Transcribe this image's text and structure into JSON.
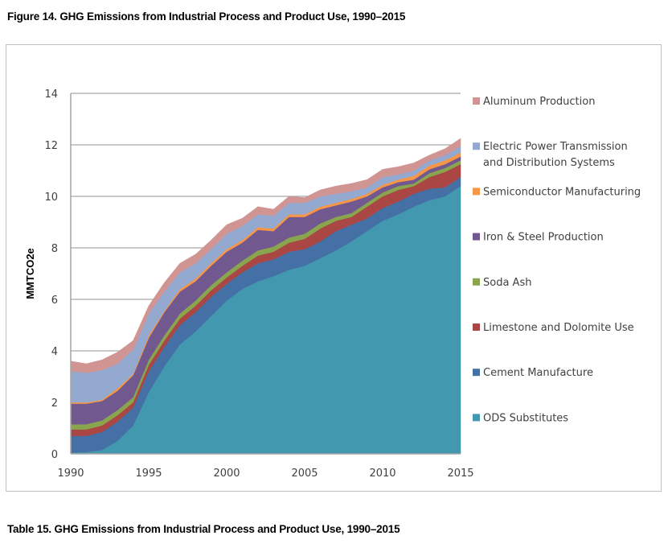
{
  "figure_title": "Figure 14. GHG Emissions from Industrial Process and Product Use, 1990–2015",
  "table_title": "Table 15. GHG Emissions from Industrial Process and Product Use, 1990–2015",
  "chart_data": {
    "type": "area",
    "stacked": true,
    "title": "Figure 14. GHG Emissions from Industrial Process and Product Use, 1990–2015",
    "xlabel": "",
    "ylabel": "MMTCO2e",
    "xlim": [
      1990,
      2015
    ],
    "ylim": [
      0,
      14
    ],
    "x_ticks": [
      "1990",
      "1995",
      "2000",
      "2005",
      "2010",
      "2015"
    ],
    "y_ticks": [
      "0",
      "2",
      "4",
      "6",
      "8",
      "10",
      "12",
      "14"
    ],
    "y_tick_values": [
      0,
      2,
      4,
      6,
      8,
      10,
      12,
      14
    ],
    "x_tick_values": [
      1990,
      1995,
      2000,
      2005,
      2010,
      2015
    ],
    "grid": "horizontal",
    "legend_position": "right",
    "x": [
      1990,
      1991,
      1992,
      1993,
      1994,
      1995,
      1996,
      1997,
      1998,
      1999,
      2000,
      2001,
      2002,
      2003,
      2004,
      2005,
      2006,
      2007,
      2008,
      2009,
      2010,
      2011,
      2012,
      2013,
      2014,
      2015
    ],
    "series": [
      {
        "name": "ODS Substitutes",
        "color": "#4198AF",
        "values": [
          0.05,
          0.07,
          0.15,
          0.5,
          1.1,
          2.4,
          3.4,
          4.25,
          4.75,
          5.35,
          5.95,
          6.4,
          6.7,
          6.9,
          7.15,
          7.3,
          7.6,
          7.9,
          8.25,
          8.65,
          9.05,
          9.3,
          9.6,
          9.85,
          10.0,
          10.4
        ]
      },
      {
        "name": "Cement Manufacture",
        "color": "#4470A6",
        "values": [
          0.65,
          0.63,
          0.7,
          0.75,
          0.7,
          0.8,
          0.75,
          0.75,
          0.75,
          0.75,
          0.65,
          0.65,
          0.7,
          0.65,
          0.7,
          0.65,
          0.65,
          0.75,
          0.65,
          0.5,
          0.5,
          0.5,
          0.5,
          0.45,
          0.35,
          0.35
        ]
      },
      {
        "name": "Limestone and Dolomite Use",
        "color": "#AA4643",
        "values": [
          0.25,
          0.25,
          0.25,
          0.25,
          0.2,
          0.25,
          0.25,
          0.25,
          0.25,
          0.25,
          0.25,
          0.25,
          0.3,
          0.3,
          0.35,
          0.4,
          0.5,
          0.4,
          0.3,
          0.45,
          0.45,
          0.45,
          0.3,
          0.45,
          0.6,
          0.5
        ]
      },
      {
        "name": "Soda Ash",
        "color": "#89A54E",
        "values": [
          0.2,
          0.2,
          0.2,
          0.2,
          0.2,
          0.2,
          0.2,
          0.2,
          0.2,
          0.2,
          0.2,
          0.2,
          0.2,
          0.2,
          0.2,
          0.2,
          0.2,
          0.15,
          0.15,
          0.15,
          0.15,
          0.15,
          0.1,
          0.15,
          0.15,
          0.15
        ]
      },
      {
        "name": "Iron & Steel Production",
        "color": "#71588F",
        "values": [
          0.8,
          0.8,
          0.75,
          0.75,
          0.85,
          0.85,
          0.9,
          0.85,
          0.75,
          0.75,
          0.8,
          0.7,
          0.8,
          0.6,
          0.8,
          0.65,
          0.55,
          0.45,
          0.45,
          0.25,
          0.2,
          0.15,
          0.15,
          0.15,
          0.15,
          0.15
        ]
      },
      {
        "name": "Semiconductor Manufacturing",
        "color": "#F79646",
        "values": [
          0.05,
          0.05,
          0.05,
          0.1,
          0.05,
          0.1,
          0.05,
          0.1,
          0.1,
          0.1,
          0.1,
          0.1,
          0.1,
          0.1,
          0.1,
          0.1,
          0.1,
          0.1,
          0.1,
          0.1,
          0.1,
          0.1,
          0.15,
          0.15,
          0.15,
          0.15
        ]
      },
      {
        "name": "Electric Power Transmission and Distribution Systems",
        "color": "#93A9CF",
        "values": [
          1.2,
          1.15,
          1.15,
          0.95,
          0.95,
          0.85,
          0.75,
          0.65,
          0.6,
          0.55,
          0.6,
          0.55,
          0.5,
          0.5,
          0.45,
          0.45,
          0.4,
          0.35,
          0.3,
          0.25,
          0.3,
          0.2,
          0.2,
          0.2,
          0.2,
          0.25
        ]
      },
      {
        "name": "Aluminum Production",
        "color": "#D09493",
        "values": [
          0.4,
          0.35,
          0.4,
          0.45,
          0.35,
          0.3,
          0.35,
          0.35,
          0.35,
          0.35,
          0.35,
          0.3,
          0.3,
          0.25,
          0.25,
          0.2,
          0.25,
          0.3,
          0.3,
          0.3,
          0.3,
          0.3,
          0.3,
          0.2,
          0.25,
          0.3
        ]
      }
    ],
    "legend": [
      {
        "label": "Aluminum Production",
        "color": "#D09493"
      },
      {
        "label_lines": [
          "Electric Power Transmission",
          "and Distribution Systems"
        ],
        "label": "Electric Power Transmission and Distribution Systems",
        "color": "#93A9CF"
      },
      {
        "label": "Semiconductor Manufacturing",
        "color": "#F79646"
      },
      {
        "label": "Iron & Steel Production",
        "color": "#71588F"
      },
      {
        "label": "Soda Ash",
        "color": "#89A54E"
      },
      {
        "label": "Limestone and Dolomite Use",
        "color": "#AA4643"
      },
      {
        "label": "Cement Manufacture",
        "color": "#4470A6"
      },
      {
        "label": "ODS Substitutes",
        "color": "#4198AF"
      }
    ]
  }
}
